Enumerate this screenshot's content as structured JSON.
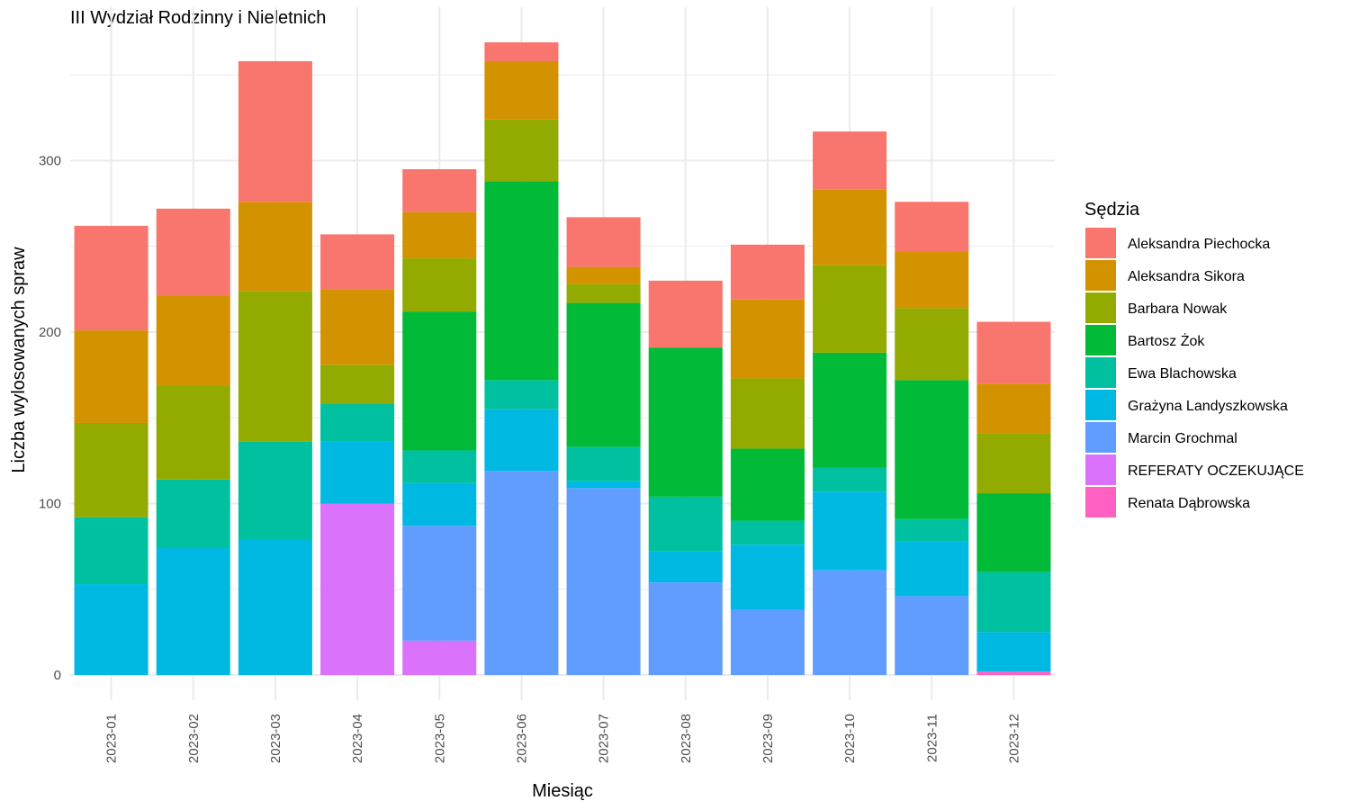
{
  "chart_data": {
    "type": "bar",
    "stacked": true,
    "title": "III Wydział Rodzinny i Nieletnich",
    "xlabel": "Miesiąc",
    "ylabel": "Liczba wylosowanych spraw",
    "ylim": [
      0,
      380
    ],
    "yticks": [
      0,
      100,
      200,
      300
    ],
    "grid": true,
    "legend_title": "Sędzia",
    "legend_position": "right",
    "categories": [
      "2023-01",
      "2023-02",
      "2023-03",
      "2023-04",
      "2023-05",
      "2023-06",
      "2023-07",
      "2023-08",
      "2023-09",
      "2023-10",
      "2023-11",
      "2023-12"
    ],
    "series": [
      {
        "name": "Aleksandra Piechocka",
        "color": "#F8766D",
        "values": [
          61,
          51,
          82,
          32,
          25,
          11,
          29,
          39,
          32,
          34,
          29,
          36
        ]
      },
      {
        "name": "Aleksandra Sikora",
        "color": "#D39200",
        "values": [
          54,
          52,
          52,
          44,
          27,
          34,
          10,
          0,
          46,
          44,
          33,
          29
        ]
      },
      {
        "name": "Barbara Nowak",
        "color": "#93AA00",
        "values": [
          55,
          55,
          88,
          23,
          31,
          36,
          11,
          0,
          41,
          51,
          42,
          35
        ]
      },
      {
        "name": "Bartosz Żok",
        "color": "#00BA38",
        "values": [
          0,
          0,
          0,
          0,
          81,
          116,
          84,
          87,
          42,
          67,
          81,
          46
        ]
      },
      {
        "name": "Ewa Blachowska",
        "color": "#00C19F",
        "values": [
          39,
          40,
          57,
          22,
          19,
          17,
          20,
          32,
          14,
          14,
          13,
          35
        ]
      },
      {
        "name": "Grażyna Landyszkowska",
        "color": "#00B9E3",
        "values": [
          53,
          74,
          79,
          36,
          25,
          36,
          4,
          18,
          38,
          46,
          32,
          23
        ]
      },
      {
        "name": "Marcin Grochmal",
        "color": "#619CFF",
        "values": [
          0,
          0,
          0,
          0,
          67,
          119,
          109,
          54,
          38,
          61,
          46,
          0
        ]
      },
      {
        "name": "REFERATY OCZEKUJĄCE",
        "color": "#DB72FB",
        "values": [
          0,
          0,
          0,
          100,
          20,
          0,
          0,
          0,
          0,
          0,
          0,
          0
        ]
      },
      {
        "name": "Renata Dąbrowska",
        "color": "#FF61C3",
        "values": [
          0,
          0,
          0,
          0,
          0,
          0,
          0,
          0,
          0,
          0,
          0,
          2
        ]
      }
    ]
  }
}
